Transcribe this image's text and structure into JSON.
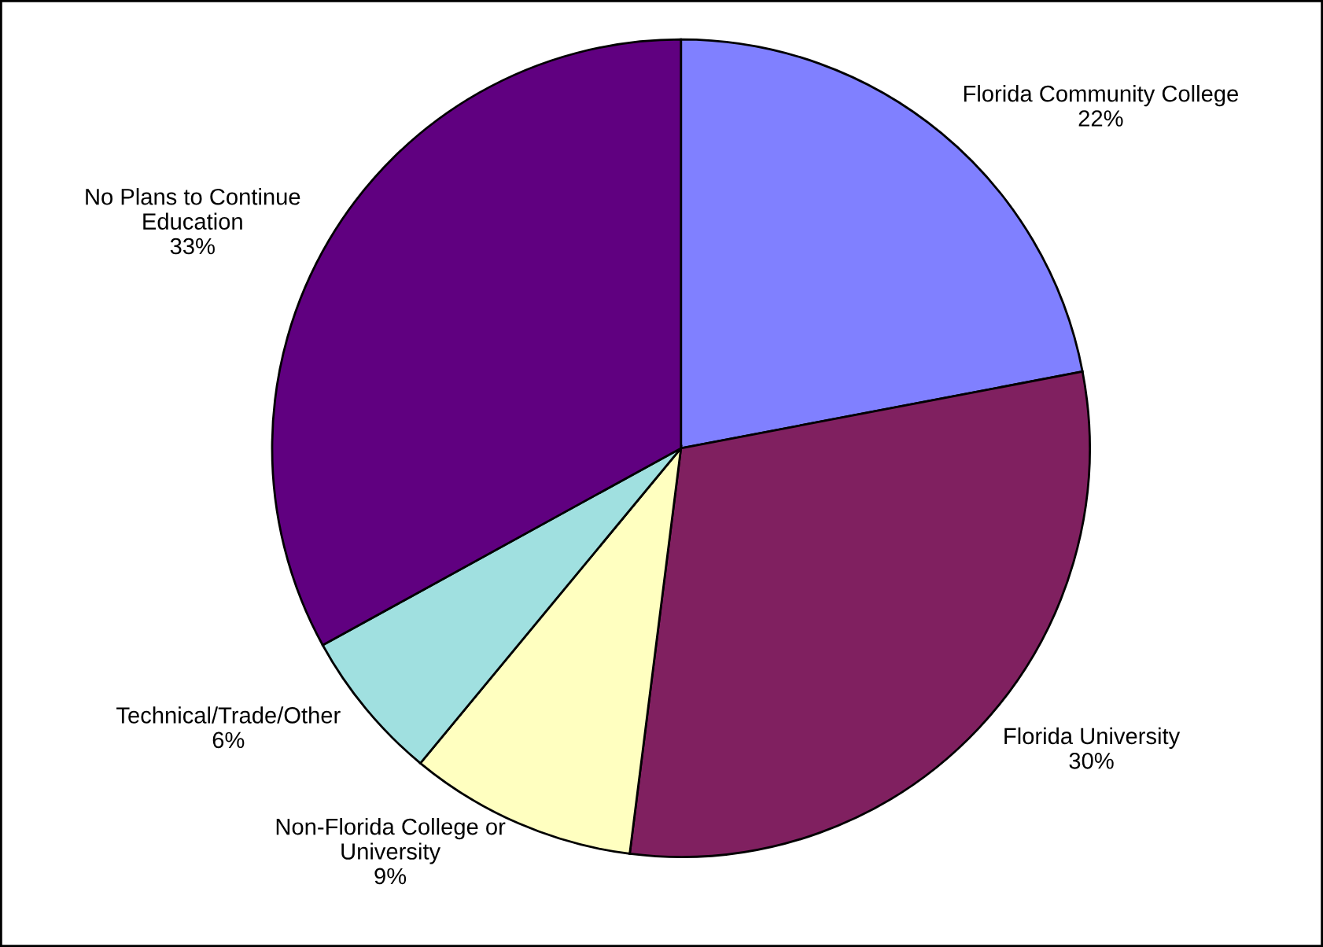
{
  "chart_data": {
    "type": "pie",
    "categories": [
      "Florida Community College",
      "Florida University",
      "Non-Florida College or\nUniversity",
      "Technical/Trade/Other",
      "No Plans to Continue\nEducation"
    ],
    "values": [
      22,
      30,
      9,
      6,
      33
    ],
    "value_labels": [
      "22%",
      "30%",
      "9%",
      "6%",
      "33%"
    ],
    "colors": [
      "#8080ff",
      "#802060",
      "#ffffc0",
      "#a0e0e0",
      "#600080"
    ],
    "legend": false
  }
}
